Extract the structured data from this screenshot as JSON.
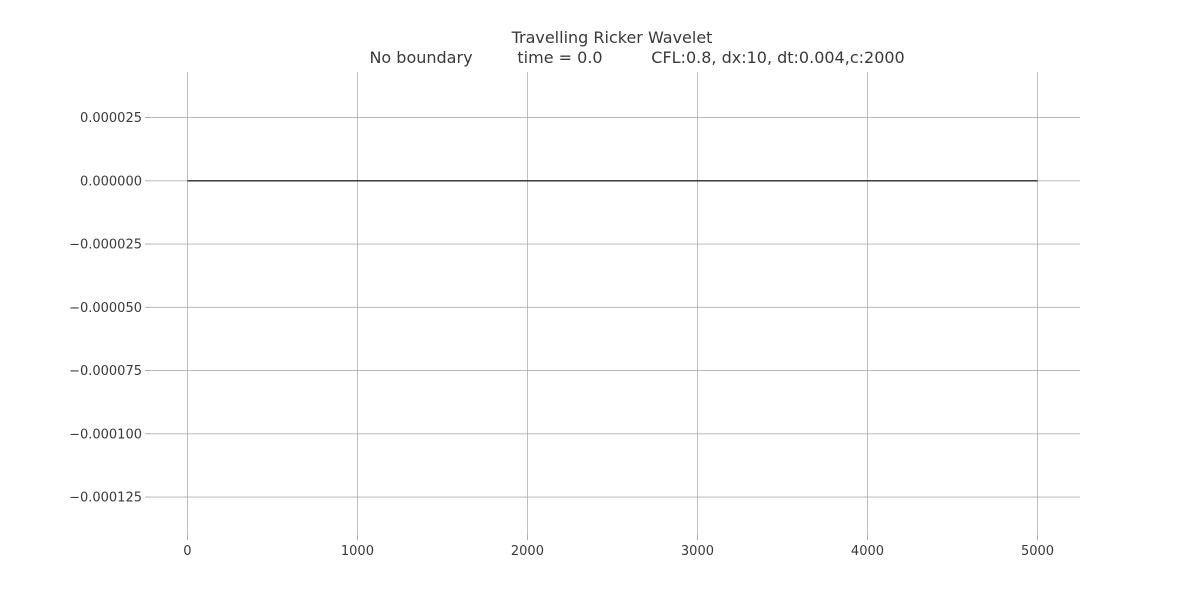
{
  "chart_data": {
    "type": "line",
    "title": "Travelling Ricker Wavelet",
    "subtitle_parts": [
      "No boundary",
      "time = 0.0",
      "CFL:0.8, dx:10, dt:0.004,c:2000"
    ],
    "xlabel": "",
    "ylabel": "",
    "xlim": [
      -220,
      5250
    ],
    "ylim": [
      -0.00014,
      4.3e-05
    ],
    "x_ticks": [
      0,
      1000,
      2000,
      3000,
      4000,
      5000
    ],
    "x_tick_labels": [
      "0",
      "1000",
      "2000",
      "3000",
      "4000",
      "5000"
    ],
    "y_ticks": [
      2.5e-05,
      0.0,
      -2.5e-05,
      -5e-05,
      -7.5e-05,
      -0.0001,
      -0.000125
    ],
    "y_tick_labels": [
      "0.000025",
      "0.000000",
      "−0.000025",
      "−0.000050",
      "−0.000075",
      "−0.000100",
      "−0.000125"
    ],
    "grid": true,
    "series": [
      {
        "x": [
          0,
          1000,
          2000,
          3000,
          4000,
          5000
        ],
        "y": [
          0,
          0,
          0,
          0,
          0,
          0
        ],
        "color": "#2b2b2b"
      }
    ]
  }
}
